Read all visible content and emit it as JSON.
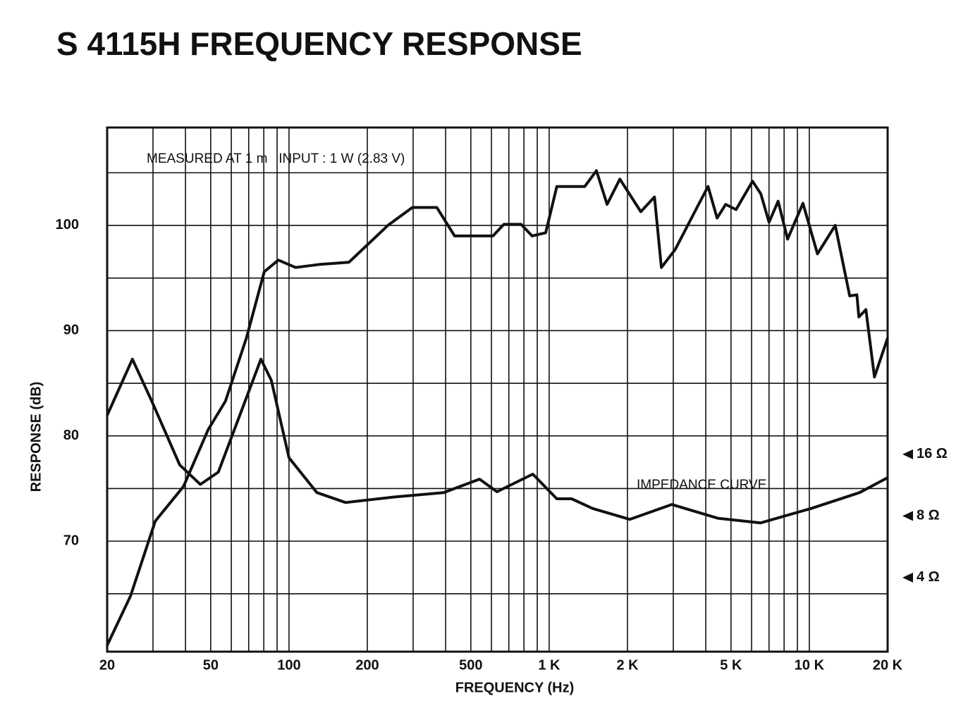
{
  "chart_data": {
    "type": "line",
    "title": "S 4115H FREQUENCY RESPONSE",
    "annotations": [
      "MEASURED AT 1 m   INPUT : 1 W (2.83 V)"
    ],
    "x_label": "FREQUENCY (Hz)",
    "y_label": "RESPONSE (dB)",
    "x_scale": "log",
    "y2_scale": "log",
    "grid": true,
    "xlim": [
      20,
      20000
    ],
    "xticks": [
      20,
      50,
      100,
      200,
      500,
      {
        "value": 1000,
        "label": "1 K"
      },
      {
        "value": 2000,
        "label": "2 K"
      },
      {
        "value": 5000,
        "label": "5 K"
      },
      {
        "value": 10000,
        "label": "10 K"
      },
      {
        "value": 20000,
        "label": "20 K"
      }
    ],
    "x_minor_ticks": [
      30,
      40,
      60,
      70,
      80,
      90,
      300,
      400,
      600,
      700,
      800,
      900,
      3000,
      4000,
      6000,
      7000,
      8000,
      9000
    ],
    "ylim": [
      59.5,
      109.3
    ],
    "yticks": [
      70,
      80,
      90,
      100
    ],
    "y_minor_ticks": [
      65,
      75,
      85,
      95,
      105
    ],
    "y2lim": [
      1.74,
      630
    ],
    "y2ticks": [
      {
        "value": 16,
        "label": "16 Ω"
      },
      {
        "value": 8,
        "label": "8 Ω"
      },
      {
        "value": 4,
        "label": "4 Ω"
      }
    ],
    "series": [
      {
        "color": "#111111",
        "x": [
          20,
          24.6,
          30.6,
          39.3,
          48.9,
          57,
          68.6,
          80.3,
          91,
          106,
          132,
          170,
          240,
          298,
          370,
          433,
          608,
          670,
          780,
          860,
          970,
          1070,
          1370,
          1520,
          1670,
          1870,
          2250,
          2540,
          2700,
          3050,
          3700,
          4080,
          4420,
          4770,
          5230,
          6050,
          6510,
          7000,
          7590,
          8250,
          9450,
          10750,
          12580,
          14300,
          15240,
          15500,
          16500,
          17800,
          20000
        ],
        "values": [
          60.1,
          64.8,
          71.9,
          75.2,
          80.6,
          83.3,
          89.3,
          95.6,
          96.7,
          96.0,
          96.3,
          96.5,
          100,
          101.7,
          101.7,
          99.0,
          99.0,
          100.1,
          100.1,
          99.0,
          99.3,
          103.7,
          103.7,
          105.2,
          102.0,
          104.4,
          101.3,
          102.7,
          96.0,
          97.7,
          101.7,
          103.7,
          100.7,
          102.0,
          101.5,
          104.2,
          103.0,
          100.3,
          102.3,
          98.7,
          102.1,
          97.3,
          100,
          93.3,
          93.4,
          91.3,
          92.0,
          85.6,
          89.3
        ]
      },
      {
        "name": "IMPEDANCE CURVE",
        "color": "#111111",
        "axis": "y2",
        "x": [
          20,
          25,
          29.7,
          38,
          45.6,
          53.5,
          64.7,
          78,
          85.5,
          100,
          128,
          165,
          255,
          393,
          540,
          630,
          865,
          1070,
          1220,
          1470,
          2040,
          2960,
          4450,
          6500,
          10150,
          15600,
          20000
        ],
        "values": [
          24.8,
          46.6,
          29.0,
          14.2,
          11.4,
          13.1,
          24.8,
          46.6,
          36.8,
          15.4,
          10.4,
          9.3,
          9.9,
          10.4,
          12.1,
          10.5,
          12.8,
          9.7,
          9.7,
          8.7,
          7.7,
          9.1,
          7.8,
          7.4,
          8.7,
          10.4,
          12.3
        ]
      }
    ]
  }
}
